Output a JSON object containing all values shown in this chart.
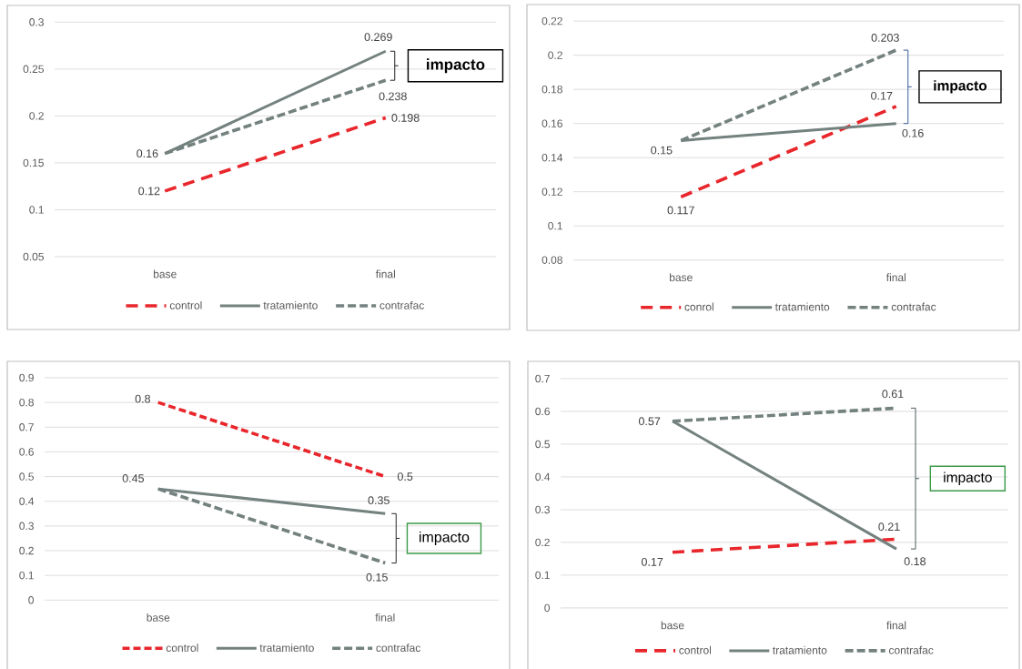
{
  "chart_data": [
    {
      "type": "line",
      "categories": [
        "base",
        "final"
      ],
      "ylim": [
        0.05,
        0.3
      ],
      "yticks": [
        0.05,
        0.1,
        0.15,
        0.2,
        0.25,
        0.3
      ],
      "grid": "y",
      "legend": "bottom",
      "series": [
        {
          "name": "control",
          "color": "#e8262b",
          "line_style": "dashed",
          "values": [
            0.12,
            0.198
          ],
          "value_labels": [
            "0.12",
            "0.198"
          ]
        },
        {
          "name": "tratamiento",
          "color": "#73817f",
          "line_style": "solid",
          "values": [
            0.16,
            0.269
          ],
          "value_labels": [
            "0.16",
            "0.269"
          ]
        },
        {
          "name": "contrafac",
          "color": "#73817f",
          "line_style": "dashed",
          "values": [
            0.16,
            0.238
          ],
          "value_labels": [
            null,
            "0.238"
          ]
        }
      ],
      "annotations": [
        "impacto"
      ]
    },
    {
      "type": "line",
      "categories": [
        "base",
        "final"
      ],
      "ylim": [
        0.08,
        0.22
      ],
      "yticks": [
        0.08,
        0.1,
        0.12,
        0.14,
        0.16,
        0.18,
        0.2,
        0.22
      ],
      "grid": "y",
      "legend": "bottom",
      "series": [
        {
          "name": "conrol",
          "color": "#e8262b",
          "line_style": "dashed",
          "values": [
            0.117,
            0.17
          ],
          "value_labels": [
            "0.117",
            "0.17"
          ]
        },
        {
          "name": "tratamiento",
          "color": "#73817f",
          "line_style": "solid",
          "values": [
            0.15,
            0.16
          ],
          "value_labels": [
            "0.15",
            "0.16"
          ]
        },
        {
          "name": "contrafac",
          "color": "#73817f",
          "line_style": "dashed",
          "values": [
            0.15,
            0.203
          ],
          "value_labels": [
            null,
            "0.203"
          ]
        }
      ],
      "annotations": [
        "impacto"
      ]
    },
    {
      "type": "line",
      "categories": [
        "base",
        "final"
      ],
      "ylim": [
        0,
        0.9
      ],
      "yticks": [
        0,
        0.1,
        0.2,
        0.3,
        0.4,
        0.5,
        0.6,
        0.7,
        0.8,
        0.9
      ],
      "grid": "y",
      "legend": "bottom",
      "series": [
        {
          "name": "control",
          "color": "#e8262b",
          "line_style": "dashed",
          "values": [
            0.8,
            0.5
          ],
          "value_labels": [
            "0.8",
            "0.5"
          ]
        },
        {
          "name": "tratamiento",
          "color": "#73817f",
          "line_style": "solid",
          "values": [
            0.45,
            0.35
          ],
          "value_labels": [
            "0.45",
            "0.35"
          ]
        },
        {
          "name": "contrafac",
          "color": "#73817f",
          "line_style": "dashed",
          "values": [
            0.45,
            0.15
          ],
          "value_labels": [
            null,
            "0.15"
          ]
        }
      ],
      "annotations": [
        "impacto"
      ]
    },
    {
      "type": "line",
      "categories": [
        "base",
        "final"
      ],
      "ylim": [
        0,
        0.7
      ],
      "yticks": [
        0,
        0.1,
        0.2,
        0.3,
        0.4,
        0.5,
        0.6,
        0.7
      ],
      "grid": "y",
      "legend": "bottom",
      "series": [
        {
          "name": "control",
          "color": "#e8262b",
          "line_style": "dashed",
          "values": [
            0.17,
            0.21
          ],
          "value_labels": [
            "0.17",
            "0.21"
          ]
        },
        {
          "name": "tratamiento",
          "color": "#73817f",
          "line_style": "solid",
          "values": [
            0.57,
            0.18
          ],
          "value_labels": [
            "0.57",
            "0.18"
          ]
        },
        {
          "name": "contrafac",
          "color": "#73817f",
          "line_style": "dashed",
          "values": [
            0.57,
            0.61
          ],
          "value_labels": [
            null,
            "0.61"
          ]
        }
      ],
      "annotations": [
        "impacto"
      ]
    }
  ]
}
